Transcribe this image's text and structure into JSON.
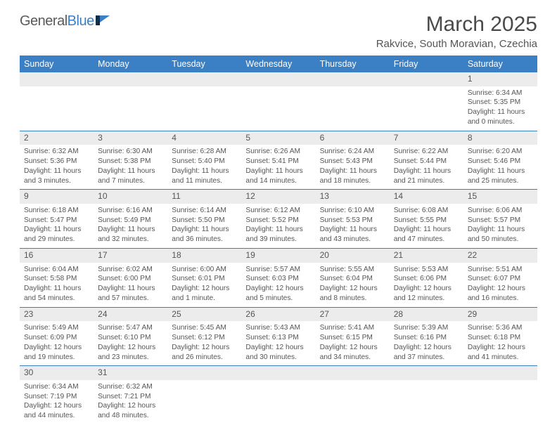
{
  "logo": {
    "textA": "General",
    "textB": "Blue"
  },
  "title": "March 2025",
  "location": "Rakvice, South Moravian, Czechia",
  "day_names": [
    "Sunday",
    "Monday",
    "Tuesday",
    "Wednesday",
    "Thursday",
    "Friday",
    "Saturday"
  ],
  "colors": {
    "headerBlue": "#3b7fc4",
    "numBg": "#ececec",
    "text": "#555555"
  },
  "weeks": [
    [
      {
        "n": "",
        "sr": "",
        "ss": "",
        "dl": ""
      },
      {
        "n": "",
        "sr": "",
        "ss": "",
        "dl": ""
      },
      {
        "n": "",
        "sr": "",
        "ss": "",
        "dl": ""
      },
      {
        "n": "",
        "sr": "",
        "ss": "",
        "dl": ""
      },
      {
        "n": "",
        "sr": "",
        "ss": "",
        "dl": ""
      },
      {
        "n": "",
        "sr": "",
        "ss": "",
        "dl": ""
      },
      {
        "n": "1",
        "sr": "Sunrise: 6:34 AM",
        "ss": "Sunset: 5:35 PM",
        "dl": "Daylight: 11 hours and 0 minutes."
      }
    ],
    [
      {
        "n": "2",
        "sr": "Sunrise: 6:32 AM",
        "ss": "Sunset: 5:36 PM",
        "dl": "Daylight: 11 hours and 3 minutes."
      },
      {
        "n": "3",
        "sr": "Sunrise: 6:30 AM",
        "ss": "Sunset: 5:38 PM",
        "dl": "Daylight: 11 hours and 7 minutes."
      },
      {
        "n": "4",
        "sr": "Sunrise: 6:28 AM",
        "ss": "Sunset: 5:40 PM",
        "dl": "Daylight: 11 hours and 11 minutes."
      },
      {
        "n": "5",
        "sr": "Sunrise: 6:26 AM",
        "ss": "Sunset: 5:41 PM",
        "dl": "Daylight: 11 hours and 14 minutes."
      },
      {
        "n": "6",
        "sr": "Sunrise: 6:24 AM",
        "ss": "Sunset: 5:43 PM",
        "dl": "Daylight: 11 hours and 18 minutes."
      },
      {
        "n": "7",
        "sr": "Sunrise: 6:22 AM",
        "ss": "Sunset: 5:44 PM",
        "dl": "Daylight: 11 hours and 21 minutes."
      },
      {
        "n": "8",
        "sr": "Sunrise: 6:20 AM",
        "ss": "Sunset: 5:46 PM",
        "dl": "Daylight: 11 hours and 25 minutes."
      }
    ],
    [
      {
        "n": "9",
        "sr": "Sunrise: 6:18 AM",
        "ss": "Sunset: 5:47 PM",
        "dl": "Daylight: 11 hours and 29 minutes."
      },
      {
        "n": "10",
        "sr": "Sunrise: 6:16 AM",
        "ss": "Sunset: 5:49 PM",
        "dl": "Daylight: 11 hours and 32 minutes."
      },
      {
        "n": "11",
        "sr": "Sunrise: 6:14 AM",
        "ss": "Sunset: 5:50 PM",
        "dl": "Daylight: 11 hours and 36 minutes."
      },
      {
        "n": "12",
        "sr": "Sunrise: 6:12 AM",
        "ss": "Sunset: 5:52 PM",
        "dl": "Daylight: 11 hours and 39 minutes."
      },
      {
        "n": "13",
        "sr": "Sunrise: 6:10 AM",
        "ss": "Sunset: 5:53 PM",
        "dl": "Daylight: 11 hours and 43 minutes."
      },
      {
        "n": "14",
        "sr": "Sunrise: 6:08 AM",
        "ss": "Sunset: 5:55 PM",
        "dl": "Daylight: 11 hours and 47 minutes."
      },
      {
        "n": "15",
        "sr": "Sunrise: 6:06 AM",
        "ss": "Sunset: 5:57 PM",
        "dl": "Daylight: 11 hours and 50 minutes."
      }
    ],
    [
      {
        "n": "16",
        "sr": "Sunrise: 6:04 AM",
        "ss": "Sunset: 5:58 PM",
        "dl": "Daylight: 11 hours and 54 minutes."
      },
      {
        "n": "17",
        "sr": "Sunrise: 6:02 AM",
        "ss": "Sunset: 6:00 PM",
        "dl": "Daylight: 11 hours and 57 minutes."
      },
      {
        "n": "18",
        "sr": "Sunrise: 6:00 AM",
        "ss": "Sunset: 6:01 PM",
        "dl": "Daylight: 12 hours and 1 minute."
      },
      {
        "n": "19",
        "sr": "Sunrise: 5:57 AM",
        "ss": "Sunset: 6:03 PM",
        "dl": "Daylight: 12 hours and 5 minutes."
      },
      {
        "n": "20",
        "sr": "Sunrise: 5:55 AM",
        "ss": "Sunset: 6:04 PM",
        "dl": "Daylight: 12 hours and 8 minutes."
      },
      {
        "n": "21",
        "sr": "Sunrise: 5:53 AM",
        "ss": "Sunset: 6:06 PM",
        "dl": "Daylight: 12 hours and 12 minutes."
      },
      {
        "n": "22",
        "sr": "Sunrise: 5:51 AM",
        "ss": "Sunset: 6:07 PM",
        "dl": "Daylight: 12 hours and 16 minutes."
      }
    ],
    [
      {
        "n": "23",
        "sr": "Sunrise: 5:49 AM",
        "ss": "Sunset: 6:09 PM",
        "dl": "Daylight: 12 hours and 19 minutes."
      },
      {
        "n": "24",
        "sr": "Sunrise: 5:47 AM",
        "ss": "Sunset: 6:10 PM",
        "dl": "Daylight: 12 hours and 23 minutes."
      },
      {
        "n": "25",
        "sr": "Sunrise: 5:45 AM",
        "ss": "Sunset: 6:12 PM",
        "dl": "Daylight: 12 hours and 26 minutes."
      },
      {
        "n": "26",
        "sr": "Sunrise: 5:43 AM",
        "ss": "Sunset: 6:13 PM",
        "dl": "Daylight: 12 hours and 30 minutes."
      },
      {
        "n": "27",
        "sr": "Sunrise: 5:41 AM",
        "ss": "Sunset: 6:15 PM",
        "dl": "Daylight: 12 hours and 34 minutes."
      },
      {
        "n": "28",
        "sr": "Sunrise: 5:39 AM",
        "ss": "Sunset: 6:16 PM",
        "dl": "Daylight: 12 hours and 37 minutes."
      },
      {
        "n": "29",
        "sr": "Sunrise: 5:36 AM",
        "ss": "Sunset: 6:18 PM",
        "dl": "Daylight: 12 hours and 41 minutes."
      }
    ],
    [
      {
        "n": "30",
        "sr": "Sunrise: 6:34 AM",
        "ss": "Sunset: 7:19 PM",
        "dl": "Daylight: 12 hours and 44 minutes."
      },
      {
        "n": "31",
        "sr": "Sunrise: 6:32 AM",
        "ss": "Sunset: 7:21 PM",
        "dl": "Daylight: 12 hours and 48 minutes."
      },
      {
        "n": "",
        "sr": "",
        "ss": "",
        "dl": ""
      },
      {
        "n": "",
        "sr": "",
        "ss": "",
        "dl": ""
      },
      {
        "n": "",
        "sr": "",
        "ss": "",
        "dl": ""
      },
      {
        "n": "",
        "sr": "",
        "ss": "",
        "dl": ""
      },
      {
        "n": "",
        "sr": "",
        "ss": "",
        "dl": ""
      }
    ]
  ]
}
